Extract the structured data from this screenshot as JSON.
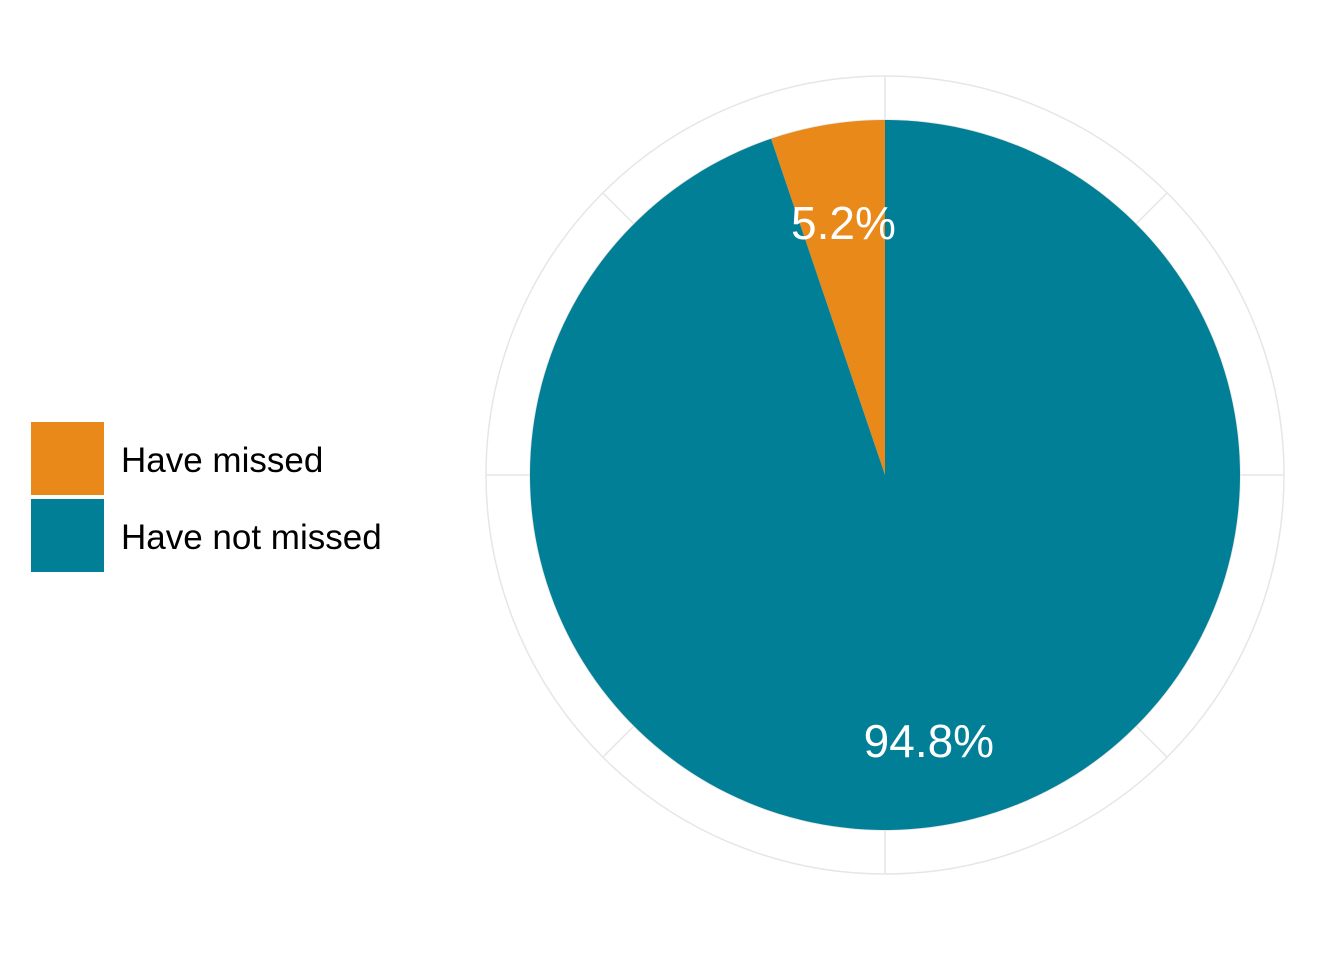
{
  "chart_data": {
    "type": "pie",
    "slices": [
      {
        "name": "Have missed",
        "value": 5.2,
        "label": "5.2%",
        "color": "#E8891A"
      },
      {
        "name": "Have not missed",
        "value": 94.8,
        "label": "94.8%",
        "color": "#007F96"
      }
    ],
    "legend": {
      "placement": "left"
    },
    "label_color": "#FFFFFF",
    "grid": true,
    "grid_color": "#E6E6E6"
  },
  "legend_items": [
    {
      "label": "Have missed",
      "color": "#E8891A"
    },
    {
      "label": "Have not missed",
      "color": "#007F96"
    }
  ]
}
